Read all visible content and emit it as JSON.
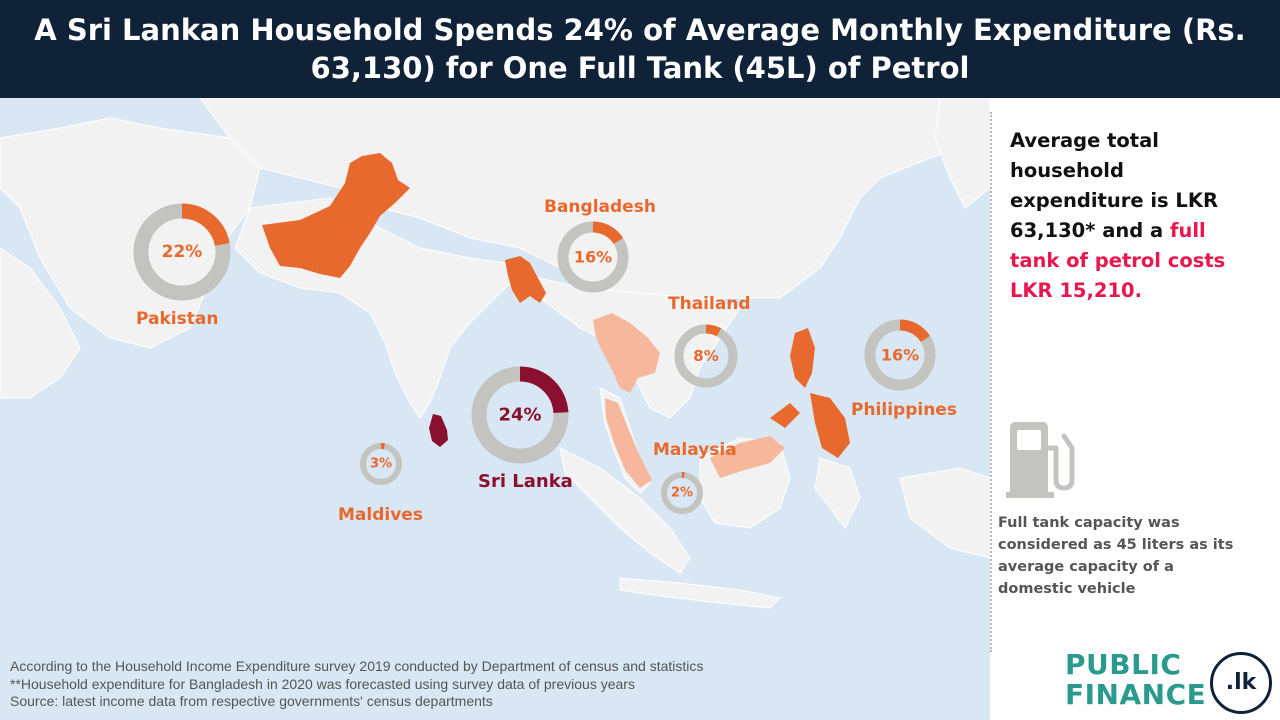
{
  "header": {
    "title_line1": "A Sri Lankan Household Spends 24% of Average Monthly Expenditure (Rs.",
    "title_line2": "63,130) for One Full Tank (45L) of Petrol"
  },
  "side": {
    "intro": "Average total household expenditure is LKR 63,130* and a",
    "highlight": "full tank of petrol costs LKR 15,210.",
    "note": "Full tank capacity was considered as 45 liters  as its average capacity of a domestic vehicle",
    "icon": "fuel-pump-icon"
  },
  "countries": [
    {
      "key": "pakistan",
      "name": "Pakistan",
      "pct_label": "22%",
      "value": 22,
      "color": "#e8692d"
    },
    {
      "key": "bangladesh",
      "name": "Bangladesh",
      "pct_label": "16%",
      "value": 16,
      "color": "#e8692d"
    },
    {
      "key": "thailand",
      "name": "Thailand",
      "pct_label": "8%",
      "value": 8,
      "color": "#e8692d"
    },
    {
      "key": "philippines",
      "name": "Philippines",
      "pct_label": "16%",
      "value": 16,
      "color": "#e8692d"
    },
    {
      "key": "srilanka",
      "name": "Sri Lanka",
      "pct_label": "24%",
      "value": 24,
      "color": "#8a1030"
    },
    {
      "key": "malaysia",
      "name": "Malaysia",
      "pct_label": "2%",
      "value": 2,
      "color": "#e8692d"
    },
    {
      "key": "maldives",
      "name": "Maldives",
      "pct_label": "3%",
      "value": 3,
      "color": "#e8692d"
    }
  ],
  "colors": {
    "header_bg": "#0f2238",
    "ocean": "#d9e7f4",
    "land": "#f2f2f2",
    "accent_orange": "#e8692d",
    "light_orange": "#f7b79c",
    "sri_lanka": "#8a1030",
    "ring_gray": "#c3c3c0",
    "highlight_pink": "#e8174d",
    "logo_teal": "#2a9a8e"
  },
  "footnotes": [
    "According to the  Household Income Expenditure survey 2019 conducted by Department of census and statistics",
    "**Household expenditure for Bangladesh in 2020  was forecasted  using survey data of previous years",
    "Source: latest income data from respective governments' census departments"
  ],
  "logo": {
    "line1": "PUBLIC",
    "line2": "FINANCE",
    "badge": ".lk"
  }
}
